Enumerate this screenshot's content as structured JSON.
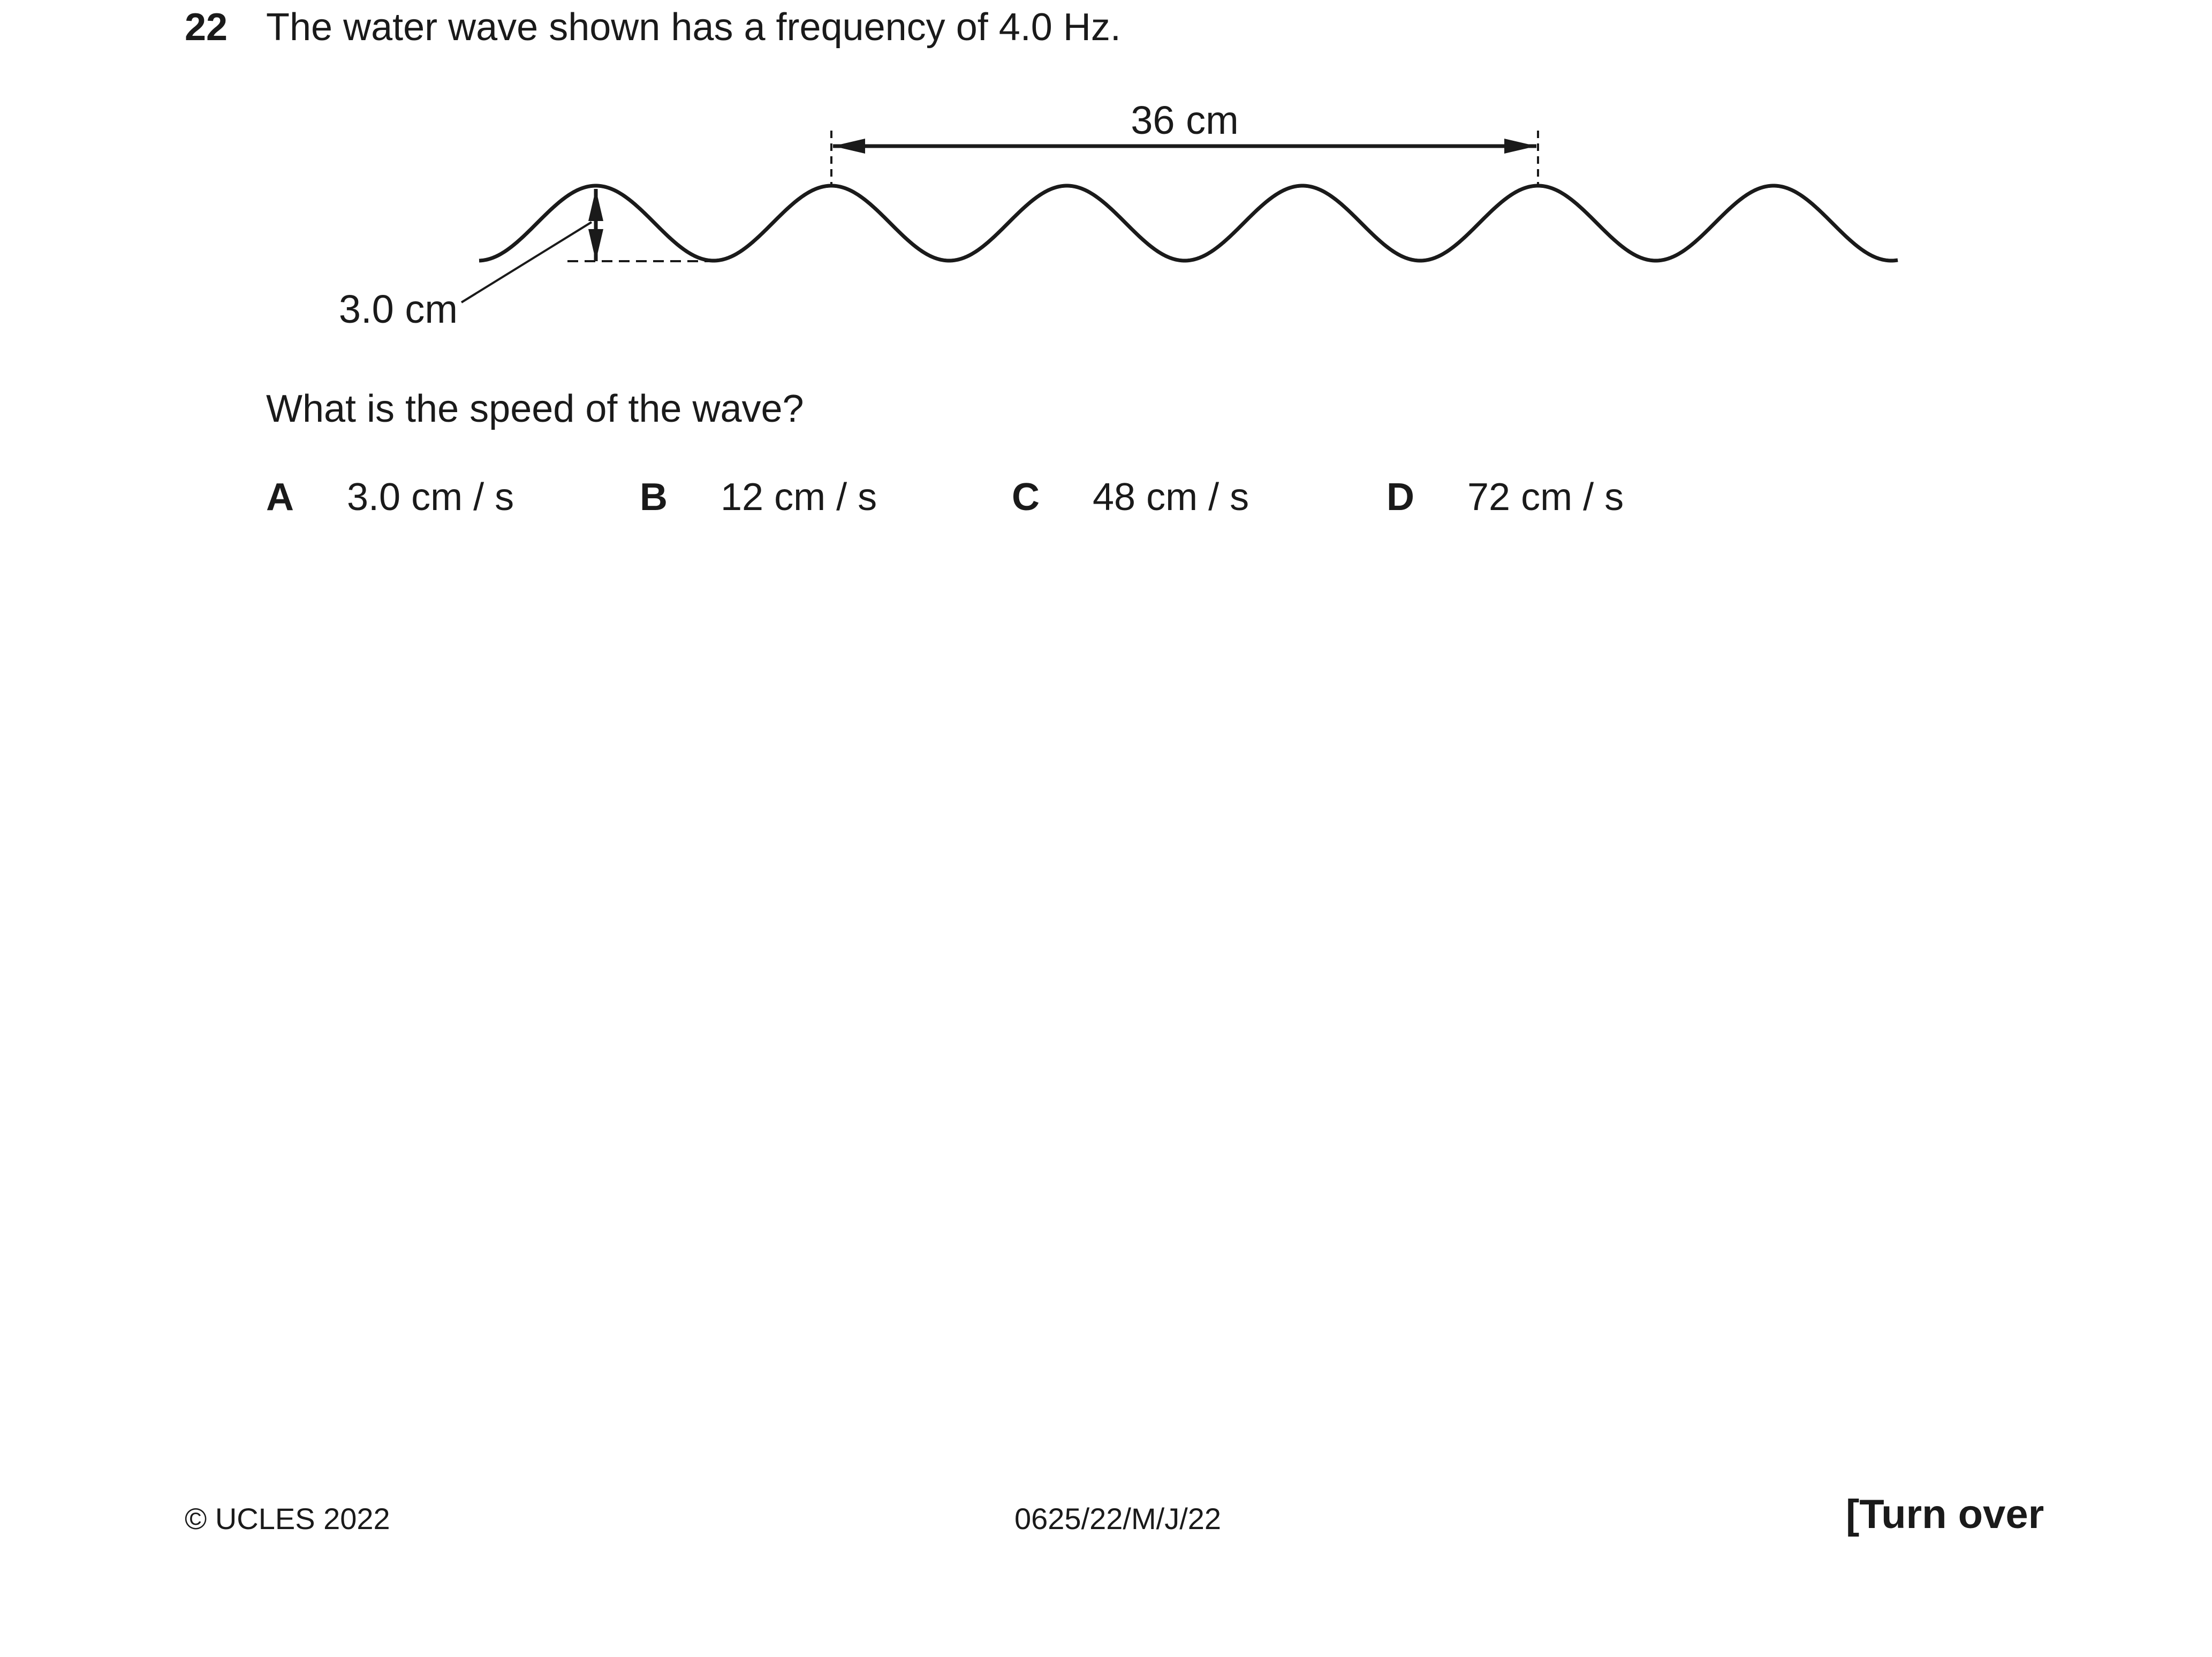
{
  "question": {
    "number": "22",
    "text": "The water wave shown has a frequency of 4.0 Hz.",
    "prompt": "What is the speed of the wave?"
  },
  "diagram": {
    "distance_label": "36 cm",
    "amplitude_label": "3.0 cm"
  },
  "options": [
    {
      "letter": "A",
      "text": "3.0 cm / s"
    },
    {
      "letter": "B",
      "text": "12 cm / s"
    },
    {
      "letter": "C",
      "text": "48 cm / s"
    },
    {
      "letter": "D",
      "text": "72 cm / s"
    }
  ],
  "footer": {
    "copyright": "© UCLES 2022",
    "code": "0625/22/M/J/22",
    "turn_over": "[Turn over"
  }
}
